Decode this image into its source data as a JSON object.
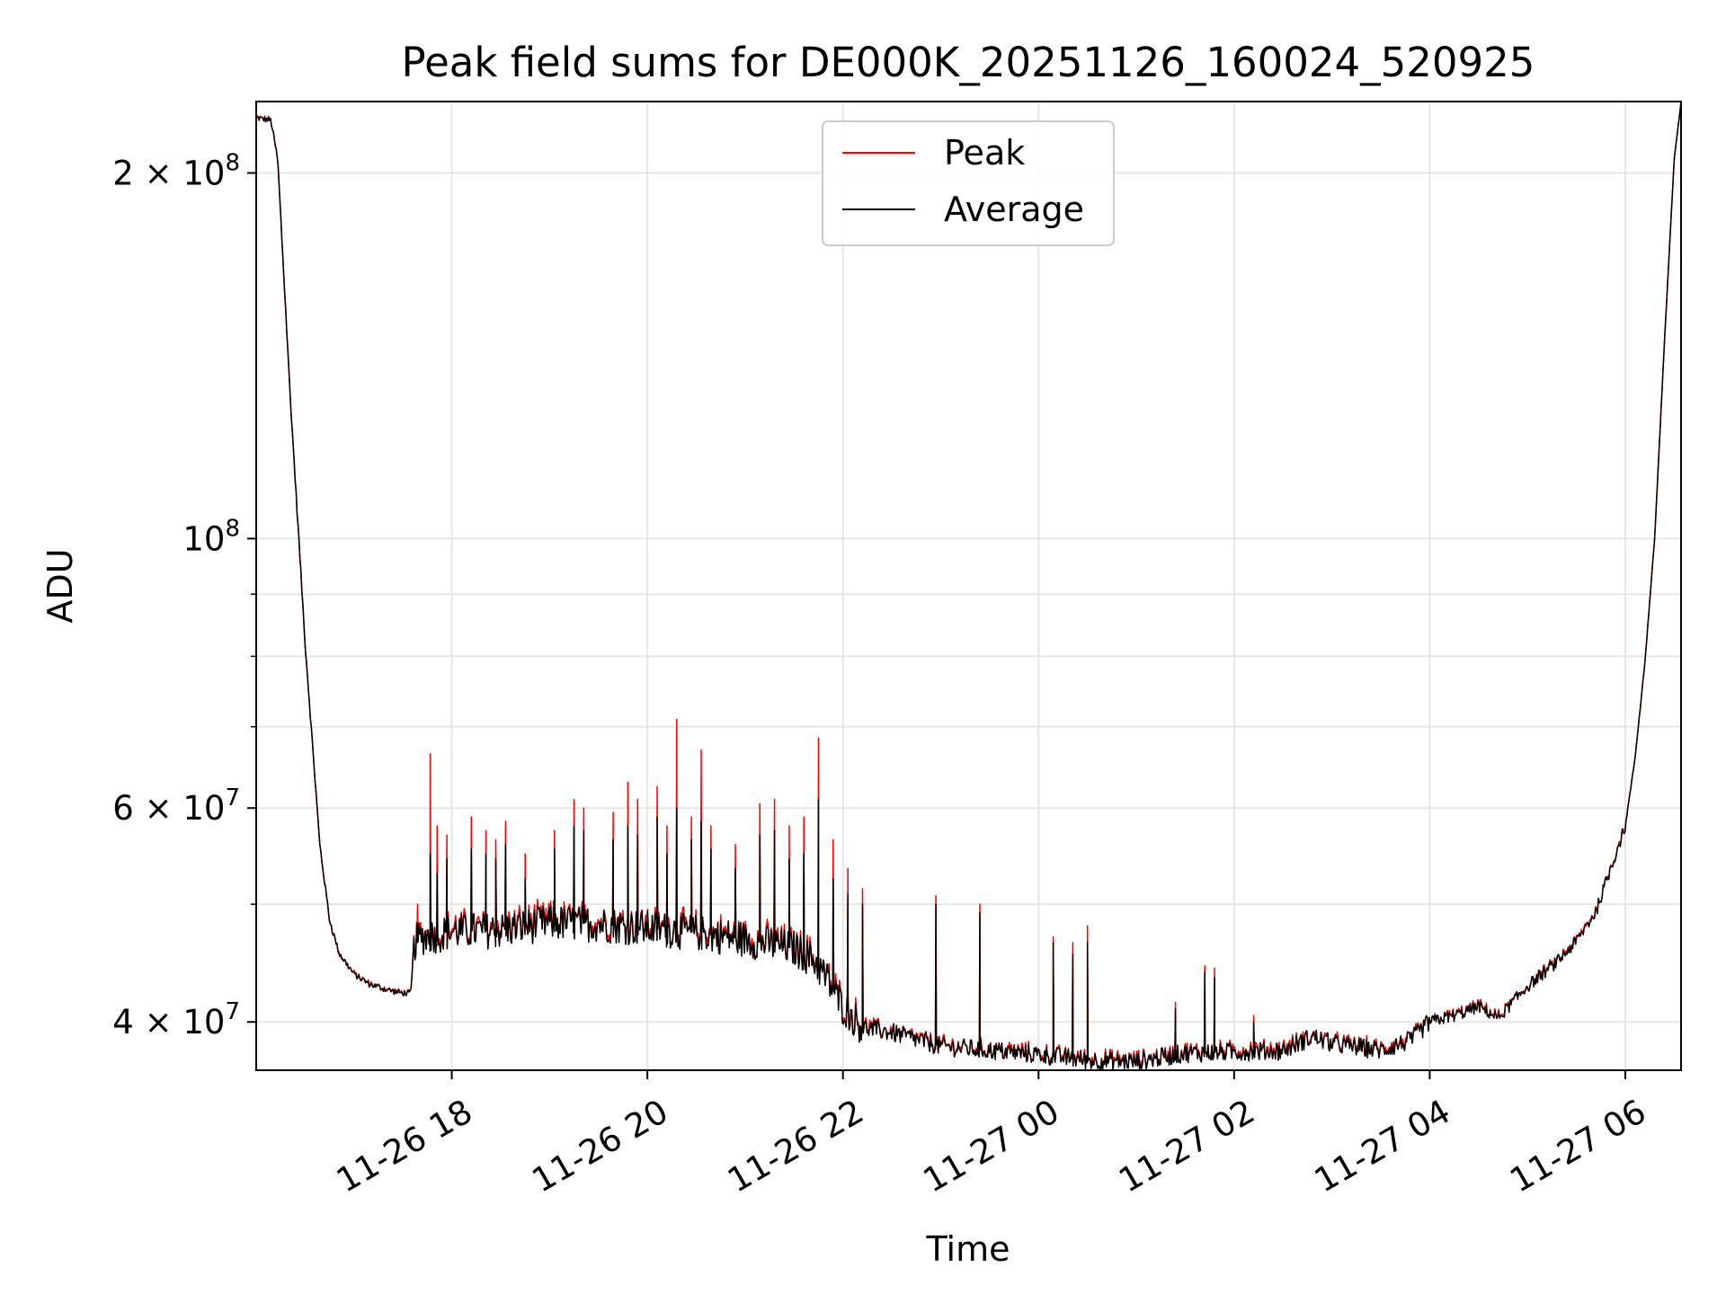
{
  "chart_data": {
    "type": "line",
    "title": "Peak field sums for DE000K_20251126_160024_520925",
    "xlabel": "Time",
    "ylabel": "ADU",
    "yscale": "log",
    "ylim": [
      36500000,
      229000000
    ],
    "xlim": [
      16.0,
      30.57
    ],
    "grid": true,
    "legend_position": "upper-center",
    "x_ticks": [
      {
        "value": 18,
        "label": "11-26 18"
      },
      {
        "value": 20,
        "label": "11-26 20"
      },
      {
        "value": 22,
        "label": "11-26 22"
      },
      {
        "value": 24,
        "label": "11-27 00"
      },
      {
        "value": 26,
        "label": "11-27 02"
      },
      {
        "value": 28,
        "label": "11-27 04"
      },
      {
        "value": 30,
        "label": "11-27 06"
      }
    ],
    "y_major_ticks": [
      {
        "value": 40000000,
        "mantissa": "4",
        "times": "×",
        "base": "10",
        "exp": "7"
      },
      {
        "value": 60000000,
        "mantissa": "6",
        "times": "×",
        "base": "10",
        "exp": "7"
      },
      {
        "value": 100000000,
        "mantissa": "",
        "times": "",
        "base": "10",
        "exp": "8"
      },
      {
        "value": 200000000,
        "mantissa": "2",
        "times": "×",
        "base": "10",
        "exp": "8"
      }
    ],
    "y_minor_ticks": [
      50000000,
      70000000,
      80000000,
      90000000
    ],
    "series": [
      {
        "name": "Peak",
        "color": "#ff0000"
      },
      {
        "name": "Average",
        "color": "#000000"
      }
    ],
    "baseline": {
      "x": [
        16.0,
        16.15,
        16.22,
        16.35,
        16.5,
        16.65,
        16.75,
        16.85,
        17.0,
        17.15,
        17.3,
        17.45,
        17.58,
        17.62,
        17.7,
        17.85,
        18.0,
        18.5,
        19.0,
        19.5,
        20.0,
        20.5,
        21.0,
        21.5,
        21.7,
        21.85,
        22.0,
        22.2,
        22.5,
        23.0,
        23.5,
        24.0,
        24.5,
        25.0,
        25.5,
        26.0,
        26.5,
        26.8,
        27.0,
        27.5,
        27.8,
        28.0,
        28.3,
        28.5,
        28.7,
        29.0,
        29.3,
        29.5,
        29.7,
        29.85,
        30.0,
        30.1,
        30.2,
        30.3,
        30.4,
        30.5,
        30.57
      ],
      "y": [
        222000000,
        221000000,
        205000000,
        130000000,
        82000000,
        56000000,
        48500000,
        45500000,
        43800000,
        43000000,
        42600000,
        42300000,
        42200000,
        46500000,
        47000000,
        47200000,
        47500000,
        47600000,
        48300000,
        48200000,
        47800000,
        47400000,
        46800000,
        46000000,
        45000000,
        43200000,
        41200000,
        39600000,
        39200000,
        38200000,
        37900000,
        37600000,
        37200000,
        37100000,
        37700000,
        37800000,
        37900000,
        38900000,
        38400000,
        37900000,
        38600000,
        40000000,
        40600000,
        41200000,
        40300000,
        42800000,
        44800000,
        46600000,
        49300000,
        53500000,
        58000000,
        66000000,
        79000000,
        100000000,
        145000000,
        205000000,
        229000000
      ]
    },
    "spikes": [
      {
        "t": 17.65,
        "peak": 50000000,
        "avg": 48000000
      },
      {
        "t": 17.78,
        "peak": 66500000,
        "avg": 55000000
      },
      {
        "t": 17.85,
        "peak": 58000000,
        "avg": 53000000
      },
      {
        "t": 17.95,
        "peak": 57000000,
        "avg": 54500000
      },
      {
        "t": 18.2,
        "peak": 59000000,
        "avg": 55500000
      },
      {
        "t": 18.35,
        "peak": 57500000,
        "avg": 55000000
      },
      {
        "t": 18.45,
        "peak": 56500000,
        "avg": 54500000
      },
      {
        "t": 18.55,
        "peak": 58500000,
        "avg": 56000000
      },
      {
        "t": 18.75,
        "peak": 55000000,
        "avg": 52500000
      },
      {
        "t": 19.05,
        "peak": 57500000,
        "avg": 55500000
      },
      {
        "t": 19.25,
        "peak": 61000000,
        "avg": 58000000
      },
      {
        "t": 19.35,
        "peak": 60000000,
        "avg": 57500000
      },
      {
        "t": 19.65,
        "peak": 59500000,
        "avg": 56500000
      },
      {
        "t": 19.8,
        "peak": 63000000,
        "avg": 58000000
      },
      {
        "t": 19.9,
        "peak": 61000000,
        "avg": 57000000
      },
      {
        "t": 20.1,
        "peak": 62500000,
        "avg": 59000000
      },
      {
        "t": 20.2,
        "peak": 58000000,
        "avg": 55000000
      },
      {
        "t": 20.3,
        "peak": 71000000,
        "avg": 60000000
      },
      {
        "t": 20.45,
        "peak": 59000000,
        "avg": 56500000
      },
      {
        "t": 20.55,
        "peak": 67000000,
        "avg": 58500000
      },
      {
        "t": 20.65,
        "peak": 58000000,
        "avg": 55500000
      },
      {
        "t": 20.9,
        "peak": 56000000,
        "avg": 53500000
      },
      {
        "t": 21.15,
        "peak": 60500000,
        "avg": 57000000
      },
      {
        "t": 21.3,
        "peak": 61000000,
        "avg": 57500000
      },
      {
        "t": 21.45,
        "peak": 58000000,
        "avg": 54500000
      },
      {
        "t": 21.6,
        "peak": 59000000,
        "avg": 55000000
      },
      {
        "t": 21.75,
        "peak": 68500000,
        "avg": 61000000
      },
      {
        "t": 21.9,
        "peak": 56500000,
        "avg": 52500000
      },
      {
        "t": 22.05,
        "peak": 53500000,
        "avg": 51000000
      },
      {
        "t": 22.2,
        "peak": 51500000,
        "avg": 50000000
      },
      {
        "t": 22.95,
        "peak": 50800000,
        "avg": 50000000
      },
      {
        "t": 23.4,
        "peak": 50000000,
        "avg": 49200000
      },
      {
        "t": 24.15,
        "peak": 47000000,
        "avg": 46500000
      },
      {
        "t": 24.35,
        "peak": 46500000,
        "avg": 45500000
      },
      {
        "t": 24.5,
        "peak": 48000000,
        "avg": 46500000
      },
      {
        "t": 25.4,
        "peak": 41500000,
        "avg": 41000000
      },
      {
        "t": 25.7,
        "peak": 44500000,
        "avg": 44000000
      },
      {
        "t": 25.8,
        "peak": 44300000,
        "avg": 43500000
      },
      {
        "t": 26.2,
        "peak": 40500000,
        "avg": 40000000
      }
    ]
  }
}
